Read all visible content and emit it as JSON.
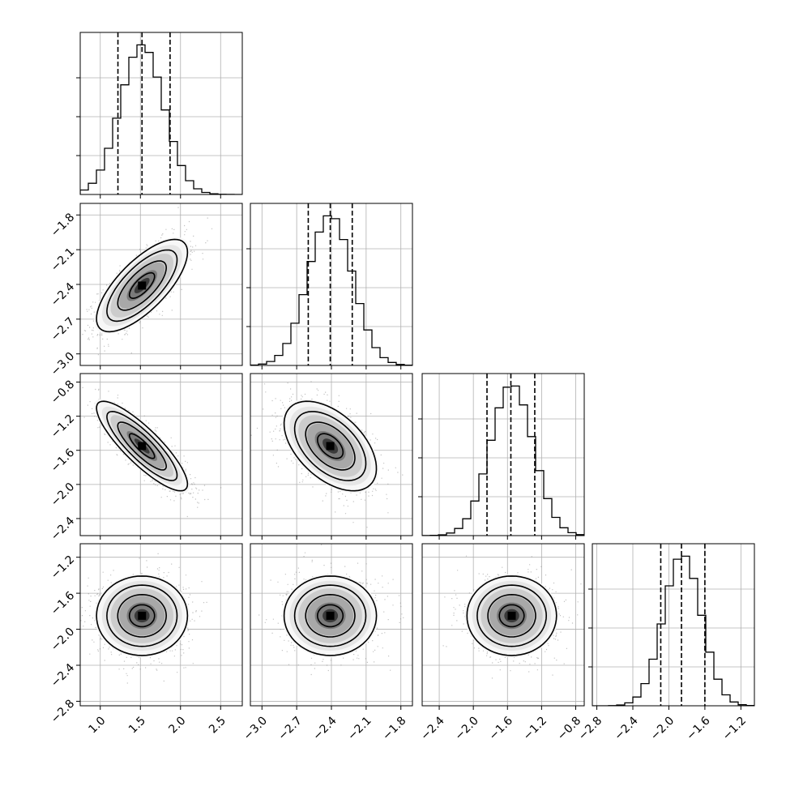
{
  "chart_data": {
    "type": "corner",
    "parameters": [
      {
        "mean": 1.52,
        "sd": 0.27,
        "quantiles": [
          1.22,
          1.52,
          1.87
        ],
        "range": [
          0.75,
          2.77
        ],
        "ticks": [
          1.0,
          1.5,
          2.0,
          2.5
        ],
        "tick_labels": [
          "1.0",
          "1.5",
          "2.0",
          "2.5"
        ]
      },
      {
        "mean": -2.41,
        "sd": 0.19,
        "quantiles": [
          -2.6,
          -2.41,
          -2.22
        ],
        "range": [
          -3.1,
          -1.7
        ],
        "ticks": [
          -3.0,
          -2.7,
          -2.4,
          -2.1,
          -1.8
        ],
        "tick_labels": [
          "−3.0",
          "−2.7",
          "−2.4",
          "−2.1",
          "−1.8"
        ]
      },
      {
        "mean": -1.55,
        "sd": 0.25,
        "quantiles": [
          -1.84,
          -1.56,
          -1.28
        ],
        "range": [
          -2.6,
          -0.7
        ],
        "ticks": [
          -2.4,
          -2.0,
          -1.6,
          -1.2,
          -0.8
        ],
        "tick_labels": [
          "−2.4",
          "−2.0",
          "−1.6",
          "−1.2",
          "−0.8"
        ]
      },
      {
        "mean": -1.85,
        "sd": 0.21,
        "quantiles": [
          -2.09,
          -1.86,
          -1.6
        ],
        "range": [
          -2.85,
          -1.05
        ],
        "ticks": [
          -2.8,
          -2.4,
          -2.0,
          -1.6,
          -1.2
        ],
        "tick_labels": [
          "−2.8",
          "−2.4",
          "−2.0",
          "−1.6",
          "−1.2"
        ]
      }
    ],
    "correlations": [
      [
        1,
        0.72,
        -0.85,
        0.0
      ],
      [
        0.72,
        1,
        -0.5,
        0.0
      ],
      [
        -0.85,
        -0.5,
        1,
        0.0
      ],
      [
        0.0,
        0.0,
        0.0,
        1
      ]
    ],
    "histogram_bins": 20,
    "contour_levels": 4,
    "quantile_lines": "dashed",
    "grid": true,
    "colors": {
      "line": "#000000",
      "grid": "#b0b0b0",
      "points": "#777777",
      "density": "#000000"
    }
  }
}
